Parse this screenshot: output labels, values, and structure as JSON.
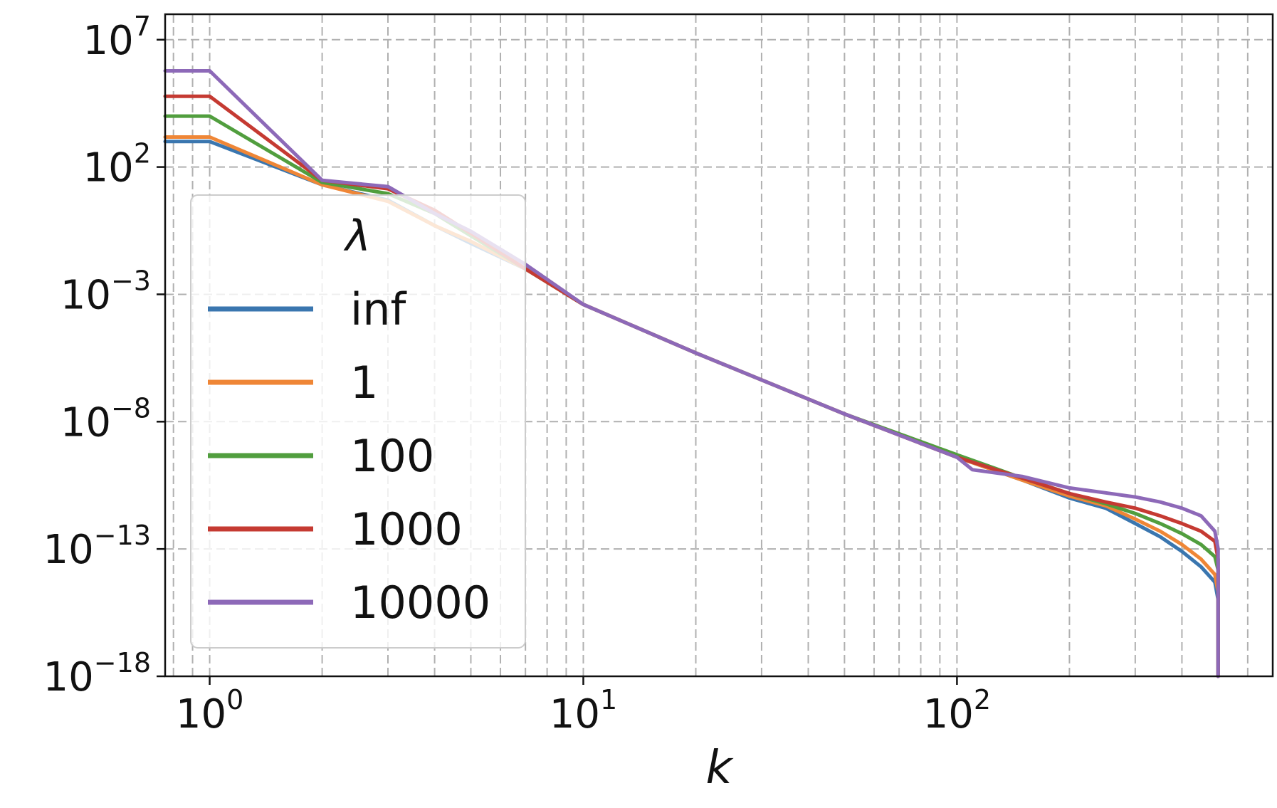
{
  "chart_data": {
    "type": "line",
    "title": "",
    "xlabel": "k",
    "ylabel": "",
    "x_scale": "log",
    "y_scale": "log",
    "xlim": [
      0.76,
      700
    ],
    "ylim": [
      1e-18,
      100000000.0
    ],
    "x_ticks": [
      {
        "base": "10",
        "exp": "0",
        "value": 1
      },
      {
        "base": "10",
        "exp": "1",
        "value": 10
      },
      {
        "base": "10",
        "exp": "2",
        "value": 100
      }
    ],
    "y_ticks": [
      {
        "base": "10",
        "exp": "7",
        "value": 10000000.0
      },
      {
        "base": "10",
        "exp": "2",
        "value": 100.0
      },
      {
        "base": "10",
        "exp": "−3",
        "value": 0.001
      },
      {
        "base": "10",
        "exp": "−8",
        "value": 1e-08
      },
      {
        "base": "10",
        "exp": "−13",
        "value": 1e-13
      },
      {
        "base": "10",
        "exp": "−18",
        "value": 1e-18
      }
    ],
    "grid": true,
    "legend": {
      "title": "λ",
      "position": "left"
    },
    "series": [
      {
        "name": "inf",
        "color": "#3a76af",
        "x": [
          0.76,
          1,
          2,
          3,
          4,
          5,
          7,
          10,
          20,
          50,
          100,
          150,
          200,
          250,
          300,
          350,
          400,
          450,
          490,
          500,
          500
        ],
        "y": [
          1000.0,
          1000.0,
          20.0,
          5,
          0.5,
          0.1,
          0.01,
          0.0004,
          5e-06,
          2e-08,
          4e-10,
          5e-11,
          1e-11,
          4e-12,
          1e-12,
          3e-13,
          8e-14,
          2e-14,
          5e-15,
          1e-15,
          1e-18
        ]
      },
      {
        "name": "1",
        "color": "#ef8636",
        "x": [
          0.76,
          1,
          2,
          3,
          4,
          5,
          7,
          10,
          20,
          50,
          100,
          150,
          200,
          250,
          300,
          350,
          400,
          450,
          490,
          500,
          500
        ],
        "y": [
          1500.0,
          1500.0,
          20.0,
          4.5,
          0.5,
          0.12,
          0.01,
          0.0004,
          5e-06,
          2e-08,
          4e-10,
          5e-11,
          1.2e-11,
          5e-12,
          1.5e-12,
          5e-13,
          1.5e-13,
          4e-14,
          1e-14,
          2e-15,
          1e-18
        ]
      },
      {
        "name": "100",
        "color": "#519e3e",
        "x": [
          0.76,
          1,
          2,
          3,
          4,
          5,
          7,
          10,
          20,
          50,
          100,
          150,
          200,
          250,
          300,
          350,
          400,
          450,
          490,
          500,
          500
        ],
        "y": [
          10000.0,
          10000.0,
          25.0,
          9,
          1.5,
          0.2,
          0.01,
          0.0004,
          5e-06,
          2e-08,
          5e-10,
          6e-11,
          1.5e-11,
          6e-12,
          2.5e-12,
          1e-12,
          4e-13,
          1.5e-13,
          5e-14,
          1.5e-14,
          1e-18
        ]
      },
      {
        "name": "1000",
        "color": "#c53a32",
        "x": [
          0.76,
          1,
          2,
          3,
          4,
          5,
          7,
          10,
          20,
          50,
          100,
          150,
          200,
          250,
          300,
          350,
          400,
          450,
          490,
          500,
          500
        ],
        "y": [
          60000.0,
          60000.0,
          30.0,
          14.0,
          2,
          0.25,
          0.01,
          0.0004,
          5e-06,
          2e-08,
          4e-10,
          6e-11,
          1.5e-11,
          7e-12,
          4e-12,
          2e-12,
          1e-12,
          5e-13,
          2e-13,
          4e-14,
          1e-18
        ]
      },
      {
        "name": "10000",
        "color": "#8d69b8",
        "x": [
          0.76,
          1,
          2,
          3,
          4,
          5,
          7,
          10,
          20,
          50,
          100,
          110,
          150,
          200,
          250,
          300,
          350,
          400,
          450,
          490,
          500,
          500
        ],
        "y": [
          600000.0,
          600000.0,
          30.0,
          17.0,
          1.5,
          0.3,
          0.015,
          0.0004,
          5e-06,
          2e-08,
          4e-10,
          1.3e-10,
          7e-11,
          2.5e-11,
          1.6e-11,
          1.1e-11,
          7e-12,
          4e-12,
          2e-12,
          5e-13,
          1e-13,
          1e-18
        ]
      }
    ]
  }
}
